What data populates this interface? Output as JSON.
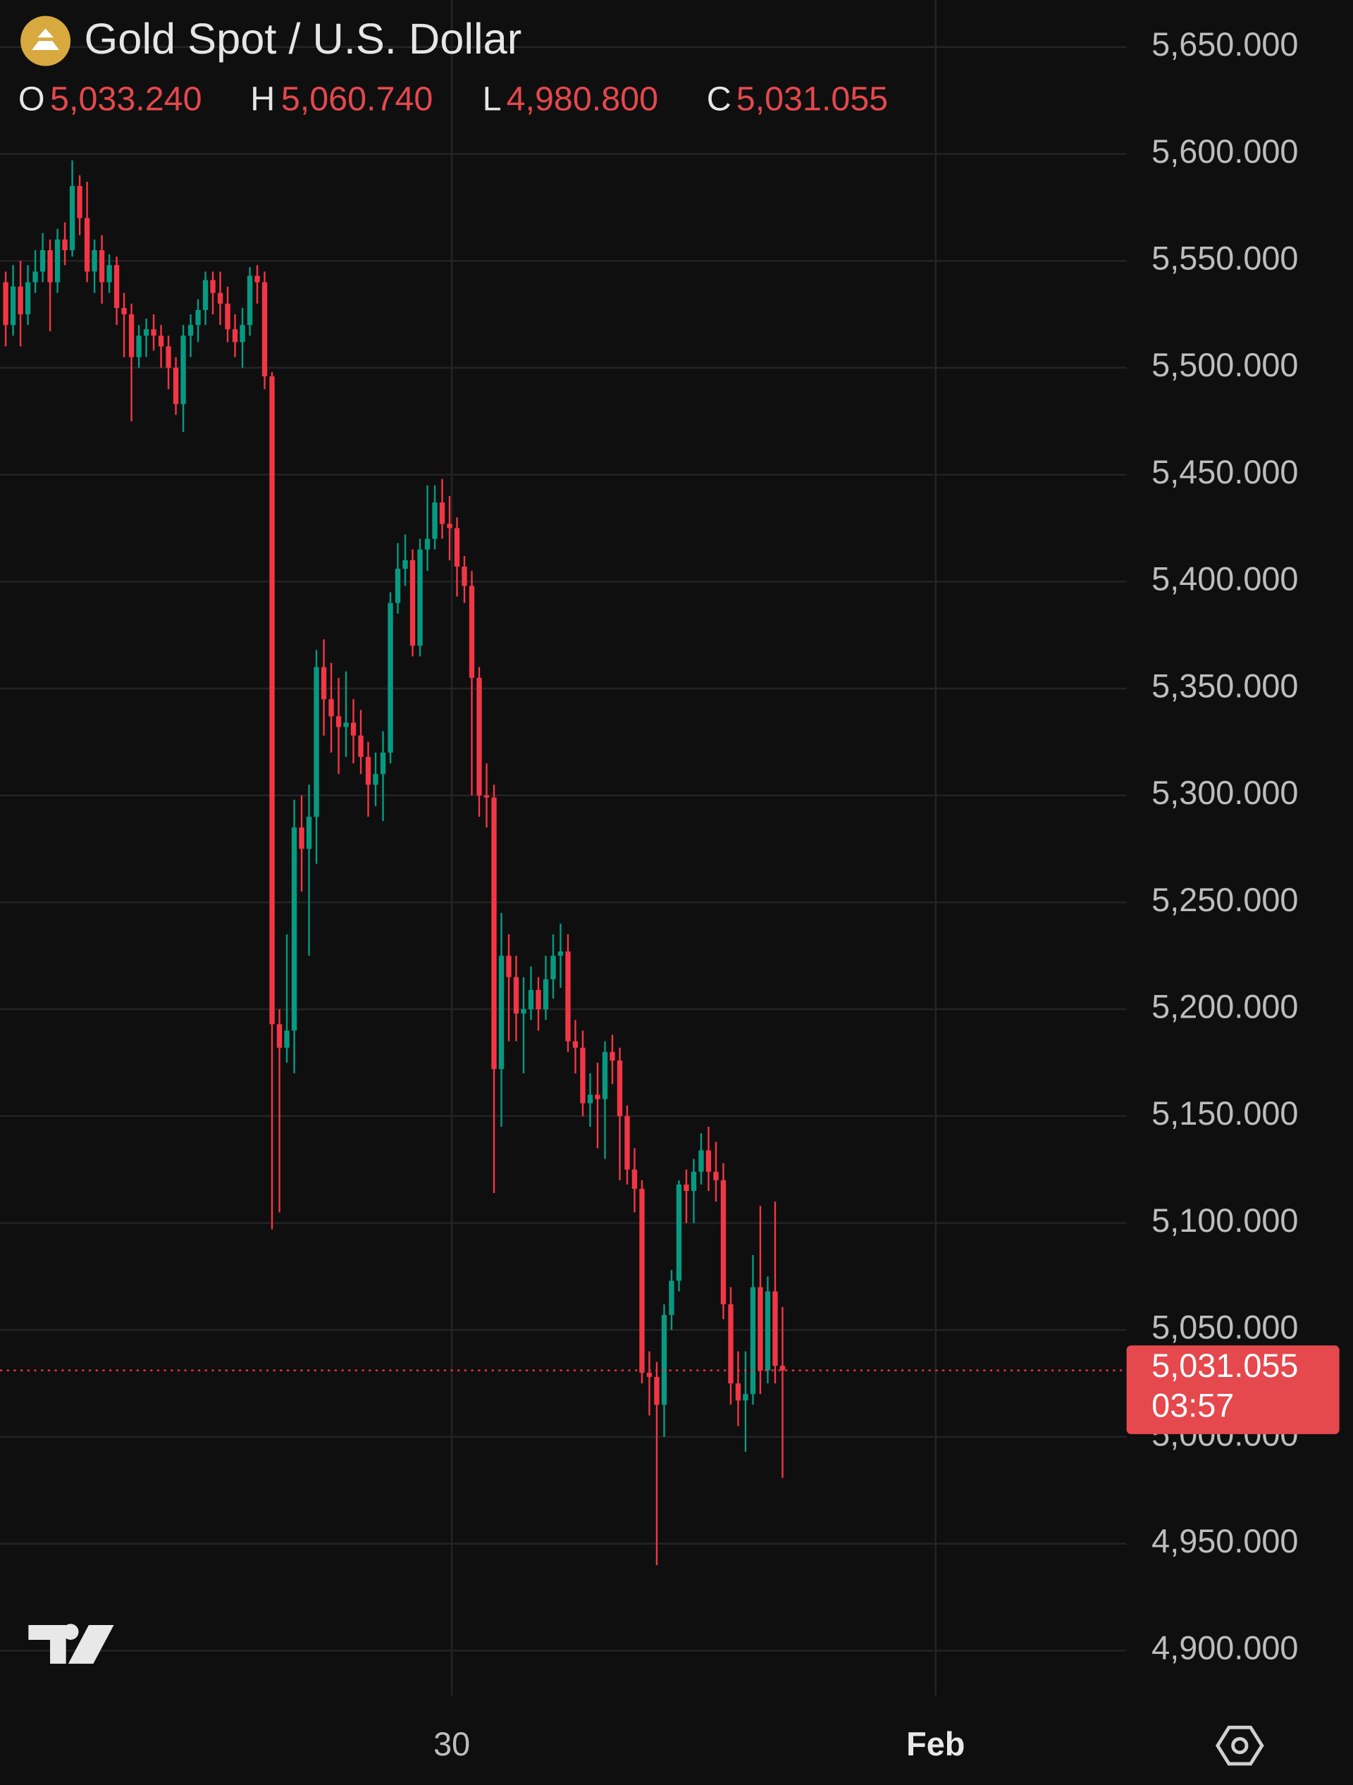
{
  "chart_data": {
    "type": "candlestick",
    "title": "Gold Spot / U.S. Dollar",
    "ohlc_legend": [
      {
        "key": "O",
        "value": 5033.24,
        "label": "5,033.240"
      },
      {
        "key": "H",
        "value": 5060.74,
        "label": "5,060.740"
      },
      {
        "key": "L",
        "value": 4980.8,
        "label": "4,980.800"
      },
      {
        "key": "C",
        "value": 5031.055,
        "label": "5,031.055"
      }
    ],
    "last_price": {
      "value": 5031.055,
      "label": "5,031.055"
    },
    "countdown": "03:57",
    "up_color": "#089981",
    "down_color": "#f23645",
    "grid": true,
    "xlim": [
      -0.77,
      151.5
    ],
    "xticks": [
      {
        "value": 60.3,
        "label": "30"
      },
      {
        "value": 125.7,
        "label": "Feb"
      }
    ],
    "ylim": [
      4879,
      5672
    ],
    "yticks": [
      {
        "value": 4900,
        "label": "4,900.000"
      },
      {
        "value": 4950,
        "label": "4,950.000"
      },
      {
        "value": 5000,
        "label": "5,000.000"
      },
      {
        "value": 5050,
        "label": "5,050.000"
      },
      {
        "value": 5100,
        "label": "5,100.000"
      },
      {
        "value": 5150,
        "label": "5,150.000"
      },
      {
        "value": 5200,
        "label": "5,200.000"
      },
      {
        "value": 5250,
        "label": "5,250.000"
      },
      {
        "value": 5300,
        "label": "5,300.000"
      },
      {
        "value": 5350,
        "label": "5,350.000"
      },
      {
        "value": 5400,
        "label": "5,400.000"
      },
      {
        "value": 5450,
        "label": "5,450.000"
      },
      {
        "value": 5500,
        "label": "5,500.000"
      },
      {
        "value": 5550,
        "label": "5,550.000"
      },
      {
        "value": 5600,
        "label": "5,600.000"
      },
      {
        "value": 5650,
        "label": "5,650.000"
      }
    ],
    "open": [
      5540,
      5520,
      5538,
      5525,
      5540,
      5545,
      5555,
      5540,
      5560,
      5555,
      5585,
      5570,
      5545,
      5555,
      5540,
      5548,
      5528,
      5525,
      5505,
      5515,
      5518,
      5515,
      5510,
      5500,
      5483,
      5515,
      5520,
      5527,
      5541,
      5535,
      5530,
      5518,
      5512,
      5520,
      5543,
      5540,
      5496,
      5193,
      5182,
      5190,
      5285,
      5275,
      5290,
      5360,
      5345,
      5337,
      5332,
      5334,
      5328,
      5318,
      5305,
      5310,
      5320,
      5390,
      5406,
      5410,
      5370,
      5415,
      5420,
      5437,
      5427,
      5425,
      5407,
      5398,
      5355,
      5300,
      5299,
      5172,
      5225,
      5215,
      5198,
      5200,
      5209,
      5200,
      5214,
      5225,
      5227,
      5185,
      5182,
      5156,
      5160,
      5158,
      5180,
      5176,
      5150,
      5125,
      5116,
      5030,
      5028,
      5015,
      5057,
      5073,
      5118,
      5115,
      5124,
      5134,
      5124,
      5120,
      5062,
      5025,
      5017,
      5020,
      5070,
      5031,
      5068,
      5033.24
    ],
    "high": [
      5545,
      5548,
      5550,
      5548,
      5555,
      5563,
      5560,
      5565,
      5568,
      5597,
      5590,
      5587,
      5560,
      5562,
      5553,
      5552,
      5535,
      5530,
      5520,
      5523,
      5525,
      5520,
      5515,
      5505,
      5520,
      5525,
      5532,
      5545,
      5545,
      5545,
      5538,
      5525,
      5528,
      5547,
      5548,
      5545,
      5498,
      5200,
      5235,
      5298,
      5300,
      5305,
      5368,
      5373,
      5362,
      5355,
      5358,
      5345,
      5340,
      5325,
      5320,
      5330,
      5395,
      5418,
      5422,
      5415,
      5420,
      5445,
      5445,
      5448,
      5440,
      5430,
      5412,
      5405,
      5360,
      5315,
      5305,
      5245,
      5235,
      5225,
      5215,
      5220,
      5215,
      5225,
      5235,
      5240,
      5235,
      5195,
      5190,
      5170,
      5175,
      5185,
      5188,
      5182,
      5155,
      5135,
      5120,
      5040,
      5035,
      5062,
      5078,
      5120,
      5125,
      5130,
      5142,
      5145,
      5138,
      5128,
      5070,
      5040,
      5040,
      5085,
      5108,
      5075,
      5110,
      5060.74
    ],
    "low": [
      5510,
      5515,
      5510,
      5520,
      5535,
      5540,
      5517,
      5535,
      5548,
      5552,
      5562,
      5540,
      5535,
      5530,
      5535,
      5520,
      5505,
      5475,
      5500,
      5505,
      5508,
      5500,
      5490,
      5478,
      5470,
      5505,
      5512,
      5520,
      5525,
      5520,
      5512,
      5505,
      5500,
      5515,
      5530,
      5490,
      5097,
      5105,
      5175,
      5170,
      5255,
      5225,
      5268,
      5328,
      5320,
      5310,
      5318,
      5315,
      5310,
      5290,
      5295,
      5288,
      5315,
      5385,
      5398,
      5365,
      5365,
      5405,
      5415,
      5420,
      5410,
      5393,
      5390,
      5300,
      5290,
      5285,
      5114,
      5145,
      5185,
      5185,
      5170,
      5195,
      5190,
      5195,
      5205,
      5210,
      5180,
      5170,
      5150,
      5145,
      5135,
      5130,
      5165,
      5120,
      5118,
      5105,
      5025,
      5010,
      4940,
      5000,
      5050,
      5068,
      5100,
      5100,
      5118,
      5115,
      5110,
      5055,
      5015,
      5005,
      4993,
      5015,
      5020,
      5025,
      5025,
      4980.8
    ],
    "close": [
      5520,
      5538,
      5525,
      5540,
      5545,
      5555,
      5540,
      5560,
      5555,
      5585,
      5570,
      5545,
      5555,
      5540,
      5548,
      5528,
      5525,
      5505,
      5515,
      5518,
      5515,
      5510,
      5500,
      5483,
      5515,
      5520,
      5527,
      5541,
      5535,
      5530,
      5518,
      5512,
      5520,
      5543,
      5540,
      5496,
      5193,
      5182,
      5190,
      5285,
      5275,
      5290,
      5360,
      5345,
      5337,
      5332,
      5334,
      5328,
      5318,
      5305,
      5310,
      5320,
      5390,
      5406,
      5410,
      5370,
      5415,
      5420,
      5437,
      5427,
      5425,
      5407,
      5398,
      5355,
      5300,
      5299,
      5172,
      5225,
      5215,
      5198,
      5200,
      5209,
      5200,
      5214,
      5225,
      5227,
      5185,
      5182,
      5156,
      5160,
      5158,
      5180,
      5176,
      5150,
      5125,
      5116,
      5030,
      5028,
      5015,
      5057,
      5073,
      5118,
      5115,
      5124,
      5134,
      5124,
      5120,
      5062,
      5025,
      5017,
      5020,
      5070,
      5031,
      5068,
      5033.24,
      5031.055
    ]
  }
}
